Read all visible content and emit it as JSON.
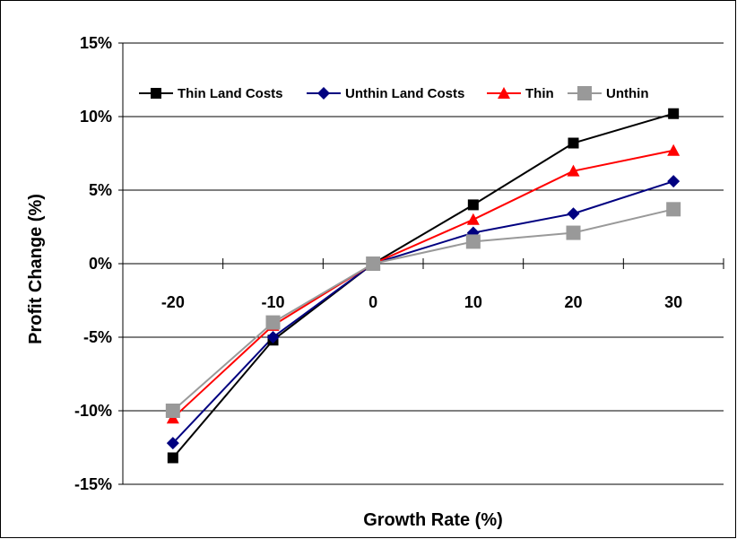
{
  "chart_data": {
    "type": "line",
    "title": "",
    "xlabel": "Growth Rate (%)",
    "ylabel": "Profit Change (%)",
    "categories": [
      "-20",
      "-10",
      "0",
      "10",
      "20",
      "30"
    ],
    "x": [
      -20,
      -10,
      0,
      10,
      20,
      30
    ],
    "ylim": [
      -15,
      15
    ],
    "y_ticks": [
      15,
      10,
      5,
      0,
      -5,
      -10,
      -15
    ],
    "y_tick_labels": [
      "15%",
      "10%",
      "5%",
      "0%",
      "-5%",
      "-10%",
      "-15%"
    ],
    "grid": "horizontal",
    "legend_position": "top",
    "series": [
      {
        "name": "Thin Land Costs",
        "color": "#000000",
        "marker": "square",
        "values": [
          -13.2,
          -5.2,
          0,
          4.0,
          8.2,
          10.2
        ]
      },
      {
        "name": "Unthin Land Costs",
        "color": "#000080",
        "marker": "diamond",
        "values": [
          -12.2,
          -5.0,
          0,
          2.1,
          3.4,
          5.6
        ]
      },
      {
        "name": "Thin",
        "color": "#ff0000",
        "marker": "triangle",
        "values": [
          -10.5,
          -4.2,
          0,
          3.0,
          6.3,
          7.7
        ]
      },
      {
        "name": "Unthin",
        "color": "#999999",
        "marker": "square-large",
        "values": [
          -10.0,
          -4.0,
          0,
          1.5,
          2.1,
          3.7
        ]
      }
    ]
  }
}
